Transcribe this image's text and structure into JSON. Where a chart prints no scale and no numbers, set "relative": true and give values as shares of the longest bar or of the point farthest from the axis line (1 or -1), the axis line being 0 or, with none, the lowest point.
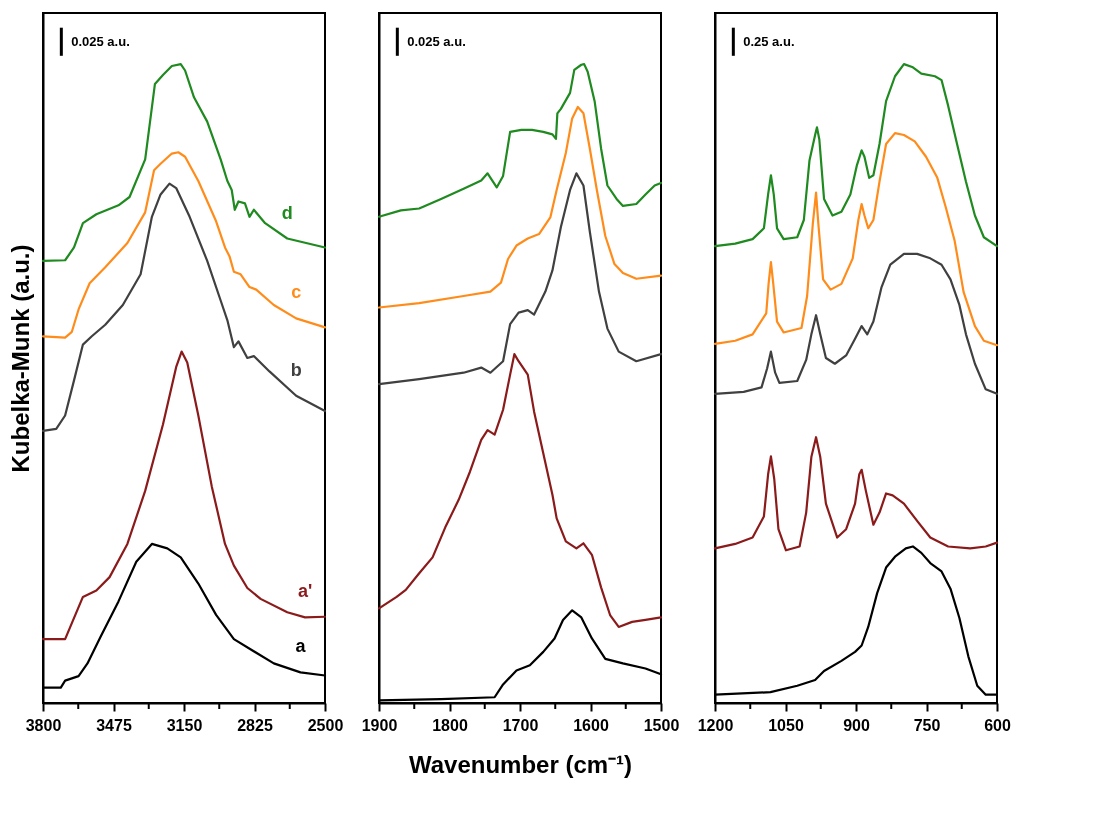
{
  "chart_data": [
    {
      "type": "line",
      "relative": true,
      "ylabel": "Kubelka-Munk (a.u.)",
      "xlim": [
        3800,
        2500
      ],
      "xticks": [
        3800,
        {
          "value": 3637.5,
          "label": null
        },
        3475,
        {
          "value": 3312.5,
          "label": null
        },
        3150,
        {
          "value": 2987.5,
          "label": null
        },
        2825,
        {
          "value": 2662.5,
          "label": null
        },
        2500
      ],
      "annotations": [
        "0.025 a.u."
      ],
      "series": [
        {
          "name": "d",
          "color": "#1f8a1f",
          "x": [
            3800,
            3698,
            3657,
            3616,
            3554,
            3452,
            3401,
            3329,
            3284,
            3247,
            3206,
            3165,
            3145,
            3104,
            3043,
            2981,
            2950,
            2930,
            2916,
            2899,
            2869,
            2848,
            2828,
            2776,
            2674,
            2500
          ],
          "values": [
            0.692,
            0.693,
            0.713,
            0.751,
            0.765,
            0.779,
            0.792,
            0.851,
            0.969,
            0.983,
            0.997,
            1.0,
            0.99,
            0.948,
            0.91,
            0.851,
            0.817,
            0.803,
            0.772,
            0.785,
            0.782,
            0.761,
            0.772,
            0.751,
            0.727,
            0.713
          ]
        },
        {
          "name": "c",
          "color": "#ff8c1a",
          "x": [
            3800,
            3698,
            3667,
            3636,
            3585,
            3513,
            3411,
            3329,
            3288,
            3258,
            3206,
            3176,
            3145,
            3084,
            3002,
            2961,
            2940,
            2920,
            2889,
            2848,
            2817,
            2736,
            2633,
            2500
          ],
          "values": [
            0.574,
            0.572,
            0.581,
            0.616,
            0.657,
            0.682,
            0.72,
            0.768,
            0.834,
            0.844,
            0.86,
            0.862,
            0.855,
            0.817,
            0.754,
            0.713,
            0.699,
            0.675,
            0.671,
            0.651,
            0.647,
            0.623,
            0.602,
            0.588
          ]
        },
        {
          "name": "b",
          "color": "#404040",
          "x": [
            3800,
            3739,
            3698,
            3657,
            3616,
            3575,
            3513,
            3432,
            3350,
            3298,
            3258,
            3217,
            3186,
            3124,
            3043,
            2981,
            2950,
            2920,
            2899,
            2858,
            2828,
            2756,
            2633,
            2500
          ],
          "values": [
            0.426,
            0.429,
            0.45,
            0.505,
            0.561,
            0.574,
            0.592,
            0.623,
            0.671,
            0.761,
            0.796,
            0.813,
            0.806,
            0.761,
            0.692,
            0.63,
            0.599,
            0.557,
            0.566,
            0.54,
            0.543,
            0.519,
            0.481,
            0.457
          ]
        },
        {
          "name": "a'",
          "color": "#8b1a1a",
          "x": [
            3800,
            3698,
            3667,
            3616,
            3554,
            3493,
            3411,
            3329,
            3247,
            3186,
            3161,
            3135,
            3084,
            3022,
            2961,
            2920,
            2858,
            2797,
            2674,
            2592,
            2500
          ],
          "values": [
            0.1,
            0.1,
            0.125,
            0.166,
            0.176,
            0.197,
            0.249,
            0.332,
            0.436,
            0.526,
            0.55,
            0.533,
            0.45,
            0.339,
            0.249,
            0.215,
            0.18,
            0.163,
            0.142,
            0.134,
            0.135
          ]
        },
        {
          "name": "a",
          "color": "#000000",
          "x": [
            3800,
            3718,
            3698,
            3636,
            3595,
            3534,
            3452,
            3370,
            3298,
            3227,
            3165,
            3084,
            3002,
            2920,
            2838,
            2736,
            2613,
            2500
          ],
          "values": [
            0.024,
            0.024,
            0.035,
            0.042,
            0.062,
            0.104,
            0.159,
            0.221,
            0.249,
            0.242,
            0.228,
            0.187,
            0.138,
            0.1,
            0.083,
            0.062,
            0.048,
            0.043
          ]
        }
      ]
    },
    {
      "type": "line",
      "relative": true,
      "xlabel": "Wavenumber (cm⁻¹)",
      "xlim": [
        1900,
        1500
      ],
      "xticks": [
        1900,
        {
          "value": 1850,
          "label": null
        },
        1800,
        {
          "value": 1750,
          "label": null
        },
        1700,
        {
          "value": 1650,
          "label": null
        },
        1600,
        {
          "value": 1550,
          "label": null
        },
        1500
      ],
      "annotations": [
        "0.025 a.u."
      ],
      "series": [
        {
          "color": "#1f8a1f",
          "x": [
            1900,
            1869,
            1843,
            1812,
            1780,
            1755,
            1746,
            1733,
            1724,
            1714,
            1698,
            1683,
            1667,
            1654,
            1649,
            1647,
            1642,
            1629,
            1623,
            1613,
            1609,
            1604,
            1594,
            1585,
            1576,
            1563,
            1554,
            1535,
            1522,
            1509,
            1500
          ],
          "values": [
            0.761,
            0.771,
            0.774,
            0.789,
            0.805,
            0.818,
            0.829,
            0.807,
            0.825,
            0.894,
            0.897,
            0.897,
            0.894,
            0.89,
            0.883,
            0.923,
            0.93,
            0.955,
            0.991,
            0.999,
            1.0,
            0.988,
            0.941,
            0.868,
            0.81,
            0.789,
            0.778,
            0.781,
            0.796,
            0.81,
            0.814
          ]
        },
        {
          "color": "#ff8c1a",
          "x": [
            1900,
            1843,
            1780,
            1742,
            1727,
            1717,
            1705,
            1689,
            1673,
            1657,
            1648,
            1635,
            1626,
            1618,
            1610,
            1601,
            1591,
            1579,
            1566,
            1554,
            1535,
            1500
          ],
          "values": [
            0.619,
            0.626,
            0.637,
            0.644,
            0.658,
            0.695,
            0.716,
            0.727,
            0.734,
            0.76,
            0.803,
            0.861,
            0.915,
            0.933,
            0.923,
            0.868,
            0.803,
            0.731,
            0.687,
            0.673,
            0.664,
            0.669
          ]
        },
        {
          "color": "#404040",
          "x": [
            1900,
            1843,
            1780,
            1755,
            1742,
            1724,
            1714,
            1702,
            1689,
            1680,
            1664,
            1654,
            1642,
            1629,
            1620,
            1610,
            1601,
            1588,
            1576,
            1560,
            1535,
            1500
          ],
          "values": [
            0.499,
            0.507,
            0.517,
            0.525,
            0.517,
            0.535,
            0.593,
            0.611,
            0.615,
            0.608,
            0.644,
            0.677,
            0.745,
            0.803,
            0.829,
            0.81,
            0.738,
            0.644,
            0.586,
            0.55,
            0.535,
            0.546
          ]
        },
        {
          "color": "#8b1a1a",
          "x": [
            1900,
            1875,
            1862,
            1843,
            1824,
            1806,
            1787,
            1771,
            1755,
            1746,
            1736,
            1724,
            1714,
            1708,
            1702,
            1689,
            1680,
            1667,
            1654,
            1648,
            1635,
            1620,
            1610,
            1598,
            1585,
            1572,
            1560,
            1541,
            1522,
            1500
          ],
          "values": [
            0.148,
            0.166,
            0.177,
            0.203,
            0.228,
            0.275,
            0.318,
            0.362,
            0.412,
            0.427,
            0.42,
            0.459,
            0.514,
            0.546,
            0.535,
            0.514,
            0.456,
            0.391,
            0.326,
            0.289,
            0.253,
            0.242,
            0.25,
            0.232,
            0.181,
            0.137,
            0.119,
            0.127,
            0.13,
            0.134
          ]
        },
        {
          "color": "#000000",
          "x": [
            1900,
            1812,
            1736,
            1724,
            1705,
            1686,
            1667,
            1651,
            1639,
            1626,
            1613,
            1598,
            1579,
            1554,
            1522,
            1500
          ],
          "values": [
            0.004,
            0.006,
            0.009,
            0.029,
            0.051,
            0.059,
            0.08,
            0.101,
            0.13,
            0.145,
            0.134,
            0.101,
            0.069,
            0.062,
            0.054,
            0.045
          ]
        }
      ]
    },
    {
      "type": "line",
      "relative": true,
      "xlim": [
        1200,
        600
      ],
      "xticks": [
        1200,
        {
          "value": 1125,
          "label": null
        },
        1050,
        {
          "value": 975,
          "label": null
        },
        900,
        {
          "value": 825,
          "label": null
        },
        750,
        {
          "value": 675,
          "label": null
        },
        600
      ],
      "annotations": [
        "0.25 a.u."
      ],
      "series": [
        {
          "color": "#1f8a1f",
          "x": [
            1200,
            1157,
            1120,
            1096,
            1087,
            1081,
            1075,
            1068,
            1054,
            1025,
            1011,
            999,
            987,
            983,
            978,
            968,
            950,
            931,
            912,
            898,
            888,
            882,
            872,
            863,
            850,
            836,
            817,
            798,
            779,
            761,
            732,
            718,
            704,
            685,
            666,
            647,
            628,
            600
          ],
          "values": [
            0.715,
            0.719,
            0.726,
            0.743,
            0.796,
            0.826,
            0.796,
            0.743,
            0.726,
            0.729,
            0.756,
            0.849,
            0.889,
            0.901,
            0.882,
            0.789,
            0.763,
            0.769,
            0.796,
            0.842,
            0.865,
            0.855,
            0.822,
            0.826,
            0.875,
            0.942,
            0.981,
            1.0,
            0.995,
            0.985,
            0.981,
            0.975,
            0.935,
            0.875,
            0.816,
            0.763,
            0.729,
            0.715
          ]
        },
        {
          "color": "#ff8c1a",
          "x": [
            1200,
            1157,
            1120,
            1091,
            1086,
            1081,
            1076,
            1068,
            1054,
            1016,
            1004,
            992,
            985,
            980,
            970,
            954,
            931,
            907,
            895,
            888,
            882,
            874,
            863,
            850,
            836,
            817,
            798,
            775,
            751,
            727,
            709,
            690,
            671,
            647,
            628,
            600
          ],
          "values": [
            0.562,
            0.567,
            0.577,
            0.61,
            0.656,
            0.69,
            0.656,
            0.597,
            0.58,
            0.587,
            0.637,
            0.749,
            0.799,
            0.749,
            0.663,
            0.647,
            0.656,
            0.696,
            0.756,
            0.781,
            0.763,
            0.743,
            0.756,
            0.816,
            0.875,
            0.892,
            0.889,
            0.879,
            0.855,
            0.822,
            0.776,
            0.723,
            0.643,
            0.59,
            0.567,
            0.56
          ]
        },
        {
          "color": "#404040",
          "x": [
            1200,
            1139,
            1101,
            1089,
            1081,
            1072,
            1063,
            1025,
            1006,
            995,
            985,
            976,
            964,
            945,
            921,
            902,
            888,
            876,
            863,
            846,
            827,
            798,
            770,
            742,
            718,
            699,
            680,
            666,
            647,
            624,
            600
          ],
          "values": [
            0.484,
            0.487,
            0.494,
            0.524,
            0.55,
            0.517,
            0.501,
            0.504,
            0.537,
            0.577,
            0.607,
            0.577,
            0.54,
            0.531,
            0.544,
            0.57,
            0.59,
            0.577,
            0.597,
            0.65,
            0.686,
            0.703,
            0.703,
            0.696,
            0.686,
            0.663,
            0.623,
            0.577,
            0.531,
            0.491,
            0.484
          ]
        },
        {
          "color": "#8b1a1a",
          "x": [
            1200,
            1157,
            1120,
            1096,
            1087,
            1081,
            1074,
            1065,
            1049,
            1020,
            1006,
            995,
            985,
            976,
            964,
            940,
            921,
            902,
            893,
            888,
            879,
            863,
            850,
            836,
            822,
            798,
            770,
            742,
            704,
            657,
            624,
            600
          ],
          "values": [
            0.242,
            0.249,
            0.259,
            0.292,
            0.358,
            0.386,
            0.351,
            0.272,
            0.239,
            0.245,
            0.298,
            0.385,
            0.416,
            0.385,
            0.312,
            0.259,
            0.272,
            0.312,
            0.358,
            0.365,
            0.332,
            0.279,
            0.298,
            0.328,
            0.325,
            0.312,
            0.285,
            0.259,
            0.245,
            0.242,
            0.245,
            0.251
          ]
        },
        {
          "color": "#000000",
          "x": [
            1200,
            1082,
            1025,
            987,
            968,
            931,
            902,
            888,
            874,
            855,
            836,
            817,
            794,
            779,
            761,
            742,
            718,
            699,
            680,
            661,
            642,
            624,
            600
          ],
          "values": [
            0.013,
            0.017,
            0.027,
            0.036,
            0.05,
            0.066,
            0.08,
            0.09,
            0.119,
            0.172,
            0.212,
            0.229,
            0.242,
            0.245,
            0.235,
            0.219,
            0.206,
            0.179,
            0.133,
            0.073,
            0.027,
            0.013,
            0.013
          ]
        }
      ]
    }
  ]
}
